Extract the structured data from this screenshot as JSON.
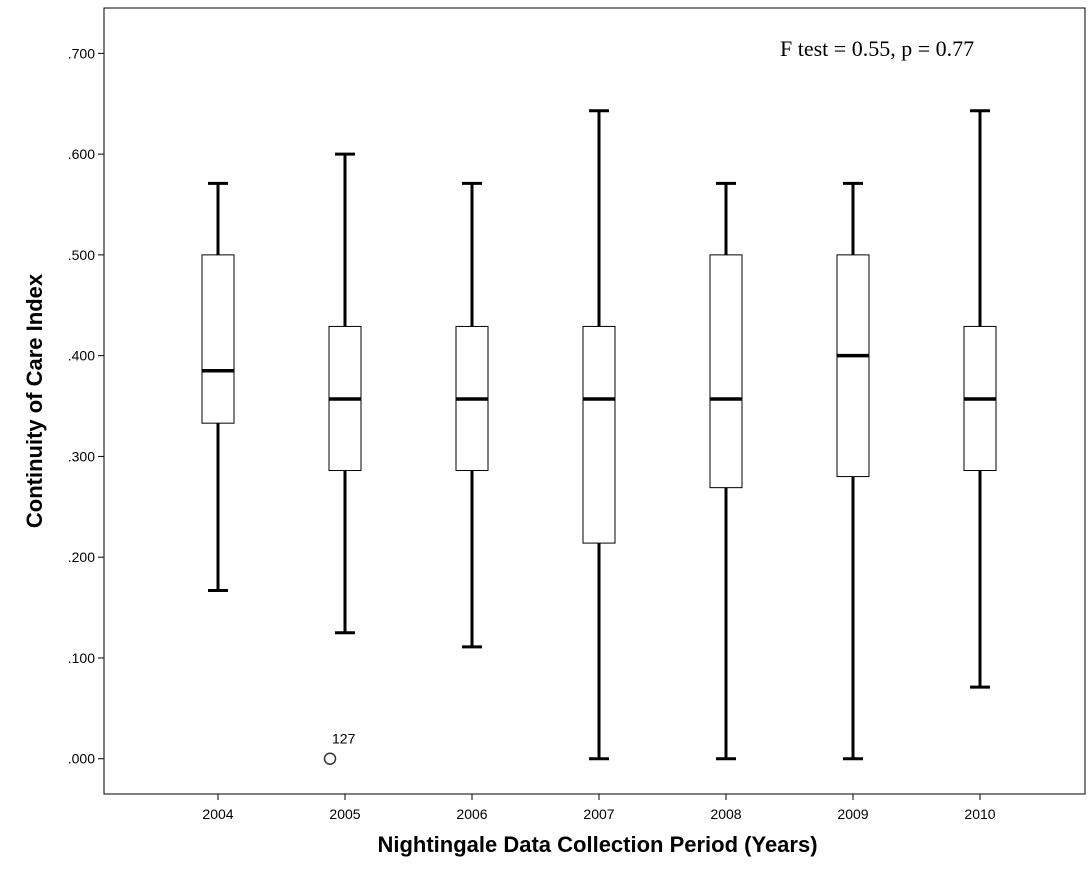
{
  "chart_data": {
    "type": "boxplot",
    "title": "",
    "xlabel": "Nightingale Data Collection Period (Years)",
    "ylabel": "Continuity of Care Index",
    "ylim": [
      -0.035,
      0.745
    ],
    "yticks": [
      0.0,
      0.1,
      0.2,
      0.3,
      0.4,
      0.5,
      0.6,
      0.7
    ],
    "ytick_labels": [
      ".000",
      ".100",
      ".200",
      ".300",
      ".400",
      ".500",
      ".600",
      ".700"
    ],
    "categories": [
      "2004",
      "2005",
      "2006",
      "2007",
      "2008",
      "2009",
      "2010"
    ],
    "boxes": [
      {
        "category": "2004",
        "whisker_low": 0.167,
        "q1": 0.333,
        "median": 0.385,
        "q3": 0.5,
        "whisker_high": 0.571
      },
      {
        "category": "2005",
        "whisker_low": 0.125,
        "q1": 0.286,
        "median": 0.357,
        "q3": 0.429,
        "whisker_high": 0.6
      },
      {
        "category": "2006",
        "whisker_low": 0.111,
        "q1": 0.286,
        "median": 0.357,
        "q3": 0.429,
        "whisker_high": 0.571
      },
      {
        "category": "2007",
        "whisker_low": 0.0,
        "q1": 0.214,
        "median": 0.357,
        "q3": 0.429,
        "whisker_high": 0.643
      },
      {
        "category": "2008",
        "whisker_low": 0.0,
        "q1": 0.269,
        "median": 0.357,
        "q3": 0.5,
        "whisker_high": 0.571
      },
      {
        "category": "2009",
        "whisker_low": 0.0,
        "q1": 0.28,
        "median": 0.4,
        "q3": 0.5,
        "whisker_high": 0.571
      },
      {
        "category": "2010",
        "whisker_low": 0.071,
        "q1": 0.286,
        "median": 0.357,
        "q3": 0.429,
        "whisker_high": 0.643
      }
    ],
    "outliers": [
      {
        "category": "2005",
        "value": 0.0,
        "label": "127"
      }
    ],
    "annotations": [
      {
        "text": "F test = 0.55, p = 0.77"
      }
    ],
    "grid": false,
    "legend": "none"
  }
}
